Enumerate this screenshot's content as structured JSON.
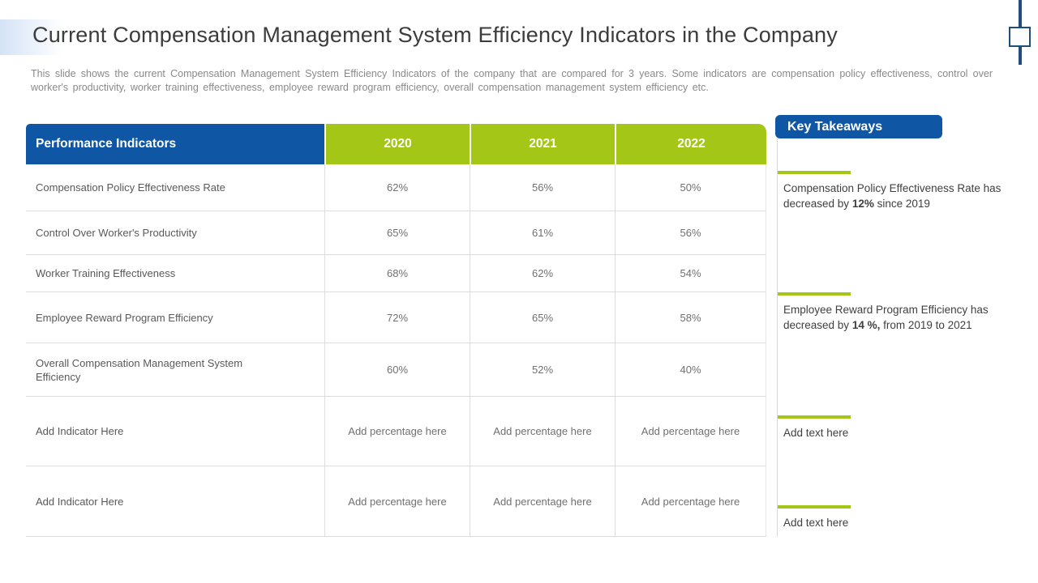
{
  "slide": {
    "title": "Current Compensation Management System Efficiency Indicators in the Company",
    "description": "This slide shows the current Compensation Management System Efficiency Indicators of the company that are compared for 3 years. Some indicators are compensation policy effectiveness, control over worker's productivity, worker training effectiveness, employee reward program efficiency, overall compensation management system efficiency etc."
  },
  "table": {
    "header": [
      "Performance Indicators",
      "2020",
      "2021",
      "2022"
    ],
    "rows": [
      {
        "indicator": "Compensation Policy Effectiveness Rate",
        "values": [
          "62%",
          "56%",
          "50%"
        ]
      },
      {
        "indicator": "Control Over Worker's Productivity",
        "values": [
          "65%",
          "61%",
          "56%"
        ]
      },
      {
        "indicator": "Worker Training Effectiveness",
        "values": [
          "68%",
          "62%",
          "54%"
        ]
      },
      {
        "indicator": "Employee Reward Program Efficiency",
        "values": [
          "72%",
          "65%",
          "58%"
        ]
      },
      {
        "indicator": "Overall Compensation Management System Efficiency",
        "values": [
          "60%",
          "52%",
          "40%"
        ]
      },
      {
        "indicator": "Add Indicator Here",
        "values": [
          "Add percentage here",
          "Add percentage here",
          "Add percentage here"
        ]
      },
      {
        "indicator": "Add Indicator Here",
        "values": [
          "Add percentage here",
          "Add percentage here",
          "Add percentage here"
        ]
      }
    ]
  },
  "takeaways": {
    "title": "Key Takeaways",
    "items": [
      {
        "pre": "Compensation Policy Effectiveness Rate has decreased by ",
        "bold": "12%",
        "post": " since 2019"
      },
      {
        "pre": "Employee Reward Program Efficiency has decreased by ",
        "bold": "14 %,",
        "post": " from 2019 to 2021"
      },
      {
        "pre": "Add text here",
        "bold": "",
        "post": ""
      },
      {
        "pre": "Add text here",
        "bold": "",
        "post": ""
      }
    ]
  },
  "colors": {
    "header_blue": "#0f57a5",
    "accent_green": "#a3c617",
    "accent_navy": "#1f4e79"
  }
}
